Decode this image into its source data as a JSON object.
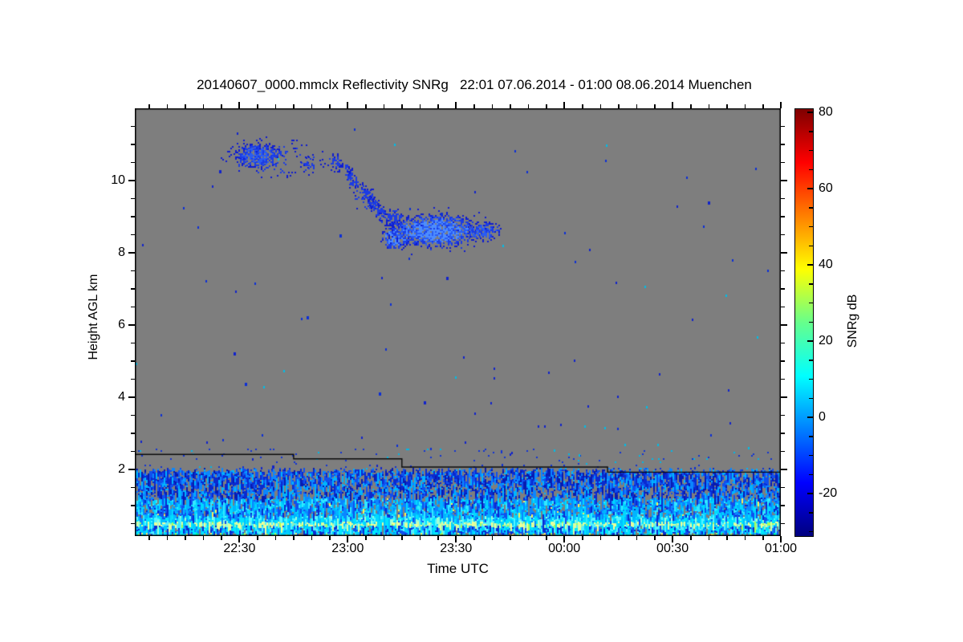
{
  "chart_data": {
    "type": "heatmap",
    "title_line": "20140607_0000.mmclx Reflectivity SNRg   22:01 07.06.2014 - 01:00 08.06.2014 Muenchen",
    "dataset_file": "20140607_0000.mmclx",
    "quantity": "Reflectivity SNRg",
    "time_span": "22:01 07.06.2014 - 01:00 08.06.2014",
    "station": "Muenchen",
    "xlabel": "Time UTC",
    "ylabel": "Height AGL km",
    "zlabel": "SNRg dB",
    "time_unit": "minutes after 22:00 UTC",
    "height_unit": "km AGL",
    "x_axis": {
      "t_min": 1,
      "t_max": 180,
      "major_ticks": [
        {
          "label": "22:30",
          "t": 30
        },
        {
          "label": "23:00",
          "t": 60
        },
        {
          "label": "23:30",
          "t": 90
        },
        {
          "label": "00:00",
          "t": 120
        },
        {
          "label": "00:30",
          "t": 150
        },
        {
          "label": "01:00",
          "t": 180
        }
      ],
      "minor_step": 5
    },
    "y_axis": {
      "h_min": 0.15,
      "h_max": 11.99,
      "major_ticks": [
        {
          "label": "2",
          "h": 2
        },
        {
          "label": "4",
          "h": 4
        },
        {
          "label": "6",
          "h": 6
        },
        {
          "label": "8",
          "h": 8
        },
        {
          "label": "10",
          "h": 10
        }
      ],
      "minor_step": 0.5
    },
    "colorbar": {
      "v_min": -31,
      "v_max": 81,
      "major_ticks": [
        {
          "label": "80",
          "v": 80
        },
        {
          "label": "60",
          "v": 60
        },
        {
          "label": "40",
          "v": 40
        },
        {
          "label": "20",
          "v": 20
        },
        {
          "label": "0",
          "v": 0
        },
        {
          "label": "-20",
          "v": -20
        }
      ],
      "minor_step": 5,
      "jet_stops": [
        {
          "p": 0.0,
          "c": "#00007f"
        },
        {
          "p": 0.125,
          "c": "#0000ff"
        },
        {
          "p": 0.375,
          "c": "#00ffff"
        },
        {
          "p": 0.5,
          "c": "#66ff8c"
        },
        {
          "p": 0.625,
          "c": "#ffff00"
        },
        {
          "p": 0.875,
          "c": "#ff0000"
        },
        {
          "p": 1.0,
          "c": "#7f0000"
        }
      ]
    },
    "no_data_color": "#7e7e7e",
    "render_seed": 1337,
    "features": {
      "cloud_palette": [
        "#0e1cd0",
        "#1c3ce4",
        "#2a5cf2",
        "#4d8dff"
      ],
      "clouds": [
        {
          "type": "blob",
          "t": 35,
          "h": 10.7,
          "rt": 7,
          "rh": 0.36,
          "density": 0.85,
          "pmax": 2
        },
        {
          "type": "blob",
          "t": 39,
          "h": 10.62,
          "rt": 15,
          "rh": 0.6,
          "density": 0.16,
          "pmax": 1
        },
        {
          "type": "blob",
          "t": 50,
          "h": 10.45,
          "rt": 4,
          "rh": 0.3,
          "density": 0.28,
          "pmax": 1
        },
        {
          "type": "blob",
          "t": 56.5,
          "h": 10.5,
          "rt": 2.5,
          "rh": 0.3,
          "density": 0.6,
          "pmax": 1
        },
        {
          "type": "trail",
          "t0": 59,
          "h0": 10.3,
          "t1": 71,
          "h1": 8.85,
          "r": 0.26,
          "density": 0.5,
          "pmax": 1
        },
        {
          "type": "blob",
          "t": 64,
          "h": 9.55,
          "rt": 3.5,
          "rh": 0.45,
          "density": 0.25,
          "pmax": 1
        },
        {
          "type": "blob",
          "t": 72.5,
          "h": 8.98,
          "rt": 3.2,
          "rh": 0.28,
          "density": 0.8,
          "pmax": 1
        },
        {
          "type": "blob",
          "t": 73,
          "h": 8.42,
          "rt": 4.5,
          "rh": 0.35,
          "density": 0.92,
          "pmax": 3
        },
        {
          "type": "blob",
          "t": 84,
          "h": 8.62,
          "rt": 14,
          "rh": 0.5,
          "density": 0.97,
          "pmax": 3
        },
        {
          "type": "blob",
          "t": 97.5,
          "h": 8.6,
          "rt": 5.5,
          "rh": 0.3,
          "density": 0.7,
          "pmax": 2
        },
        {
          "type": "blob",
          "t": 86,
          "h": 8.6,
          "rt": 17,
          "rh": 0.75,
          "density": 0.08,
          "pmax": 1
        }
      ],
      "dots": {
        "count": 95,
        "blue_colors": [
          "#1022cc",
          "#0c2fd8"
        ],
        "cyan_color": "#00bde8",
        "fraction_cyan": 0.15
      },
      "speckle_band": {
        "h_top": 2.58,
        "h_bot": 1.97,
        "density": 0.02
      },
      "ceiling_line": {
        "color": "#0a0a0a",
        "points_t_h": [
          [
            1,
            2.42
          ],
          [
            45,
            2.42
          ],
          [
            45,
            2.3
          ],
          [
            75,
            2.3
          ],
          [
            75,
            2.07
          ],
          [
            132,
            2.07
          ],
          [
            132,
            1.93
          ],
          [
            180,
            1.93
          ]
        ]
      },
      "boundary_layer": {
        "h_top": 1.97,
        "h_bot": 0.15,
        "bands": [
          {
            "h_top": 1.97,
            "h_bot": 1.6,
            "palette": [
              [
                "#0a2ad0",
                20
              ],
              [
                "#1050ee",
                20
              ],
              [
                "#0b86ff",
                16
              ],
              [
                "#00b4ff",
                12
              ],
              [
                "#071bb0",
                12
              ],
              [
                "#7e7e7e",
                20
              ]
            ]
          },
          {
            "h_top": 1.6,
            "h_bot": 1.2,
            "palette": [
              [
                "#0a2ad0",
                16
              ],
              [
                "#1050ee",
                14
              ],
              [
                "#00b4ff",
                12
              ],
              [
                "#7e7e7e",
                30
              ],
              [
                "#0b86ff",
                14
              ],
              [
                "#071bb0",
                14
              ]
            ]
          },
          {
            "h_top": 1.2,
            "h_bot": 0.72,
            "palette": [
              [
                "#00b4ff",
                22
              ],
              [
                "#00d9ff",
                18
              ],
              [
                "#0b86ff",
                18
              ],
              [
                "#1050ee",
                14
              ],
              [
                "#7e7e7e",
                12
              ],
              [
                "#33e8ff",
                12
              ],
              [
                "#ffee55",
                1
              ],
              [
                "#0a2ad0",
                8
              ]
            ]
          },
          {
            "h_top": 0.72,
            "h_bot": 0.56,
            "palette": [
              [
                "#00e4ff",
                30
              ],
              [
                "#55f4ff",
                22
              ],
              [
                "#00c0ff",
                24
              ],
              [
                "#0b86ff",
                10
              ],
              [
                "#9effd6",
                8
              ],
              [
                "#1050ee",
                6
              ]
            ]
          },
          {
            "h_top": 0.56,
            "h_bot": 0.44,
            "palette": [
              [
                "#dcff9e",
                26
              ],
              [
                "#f4ff96",
                20
              ],
              [
                "#8af2c0",
                16
              ],
              [
                "#55f0ff",
                18
              ],
              [
                "#00d0ff",
                14
              ],
              [
                "#aaff55",
                6
              ]
            ]
          },
          {
            "h_top": 0.44,
            "h_bot": 0.26,
            "palette": [
              [
                "#00ccff",
                24
              ],
              [
                "#00e8ff",
                20
              ],
              [
                "#0a2ad0",
                16
              ],
              [
                "#1050ee",
                12
              ],
              [
                "#55f0ff",
                14
              ],
              [
                "#0b86ff",
                10
              ],
              [
                "#7e7e7e",
                4
              ]
            ]
          },
          {
            "h_top": 0.26,
            "h_bot": 0.15,
            "palette": [
              [
                "#00d8ff",
                18
              ],
              [
                "#aaff55",
                10
              ],
              [
                "#ffe96a",
                9
              ],
              [
                "#7e7e7e",
                24
              ],
              [
                "#33e8ff",
                14
              ],
              [
                "#1050ee",
                10
              ],
              [
                "#b07840",
                4
              ],
              [
                "#00ff99",
                6
              ],
              [
                "#0a2ad0",
                5
              ]
            ]
          }
        ]
      }
    }
  }
}
